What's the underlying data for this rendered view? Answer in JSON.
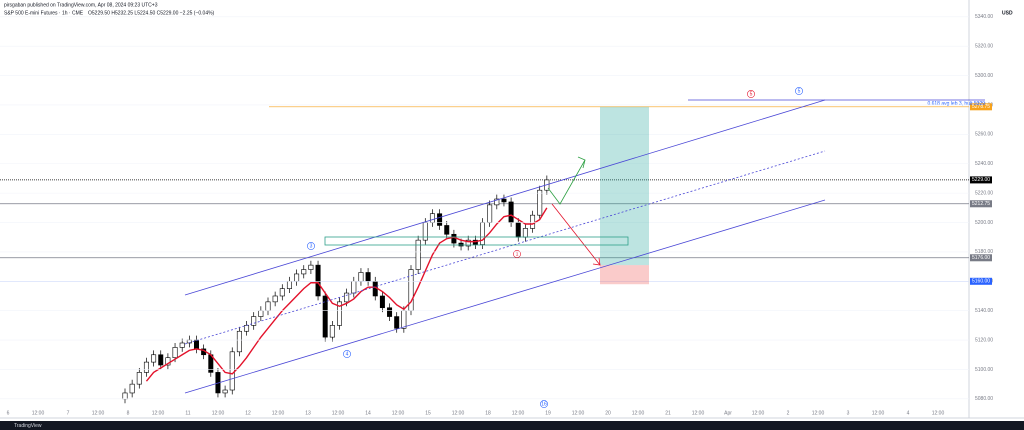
{
  "chart_data": {
    "type": "candlestick",
    "publisher": "pirsgaban published on TradingView.com, Apr 08, 2024 09:23 UTC+3",
    "title": "S&P 500 E-mini Futures · 1h · CME",
    "ohlc_text": "O5229.50 H5232.25 L5224.50 C5229.00 −2.25 (−0.04%)",
    "currency": "USD",
    "brand": "TradingView",
    "ylim": [
      5069,
      5346
    ],
    "yticks": [
      {
        "value": 5080,
        "label": "5080.00"
      },
      {
        "value": 5100,
        "label": "5100.00"
      },
      {
        "value": 5120,
        "label": "5120.00"
      },
      {
        "value": 5140,
        "label": "5140.00"
      },
      {
        "value": 5160,
        "label": "5160.00"
      },
      {
        "value": 5180,
        "label": "5180.00"
      },
      {
        "value": 5200,
        "label": "5200.00"
      },
      {
        "value": 5220,
        "label": "5220.00"
      },
      {
        "value": 5240,
        "label": "5240.00"
      },
      {
        "value": 5260,
        "label": "5260.00"
      },
      {
        "value": 5280,
        "label": "5280.00"
      },
      {
        "value": 5300,
        "label": "5300.00"
      },
      {
        "value": 5320,
        "label": "5320.00"
      },
      {
        "value": 5340,
        "label": "5340.00"
      }
    ],
    "xlabels": [
      "6",
      "12:00",
      "7",
      "12:00",
      "8",
      "12:00",
      "11",
      "12:00",
      "12",
      "12:00",
      "13",
      "12:00",
      "14",
      "12:00",
      "15",
      "12:00",
      "18",
      "12:00",
      "19",
      "12:00",
      "20",
      "12:00",
      "21",
      "12:00",
      "Apr",
      "12:00",
      "2",
      "12:00",
      "3",
      "12:00",
      "4",
      "12:00"
    ],
    "open": [
      5080,
      5084,
      5090,
      5098,
      5105,
      5110,
      5103,
      5108,
      5115,
      5118,
      5120,
      5114,
      5110,
      5098,
      5084,
      5086,
      5112,
      5126,
      5130,
      5136,
      5140,
      5146,
      5150,
      5155,
      5160,
      5165,
      5168,
      5171,
      5150,
      5122,
      5130,
      5146,
      5152,
      5160,
      5166,
      5160,
      5150,
      5142,
      5136,
      5128,
      5140,
      5168,
      5188,
      5200,
      5206,
      5198,
      5192,
      5186,
      5184,
      5188,
      5185,
      5200,
      5212,
      5216,
      5214,
      5200,
      5190,
      5196,
      5205,
      5222
    ],
    "high": [
      5087,
      5093,
      5101,
      5108,
      5113,
      5113,
      5111,
      5118,
      5121,
      5123,
      5123,
      5117,
      5113,
      5101,
      5089,
      5115,
      5129,
      5133,
      5139,
      5143,
      5149,
      5153,
      5158,
      5163,
      5168,
      5171,
      5174,
      5174,
      5153,
      5133,
      5149,
      5155,
      5163,
      5169,
      5169,
      5163,
      5153,
      5145,
      5139,
      5143,
      5171,
      5191,
      5203,
      5209,
      5209,
      5201,
      5195,
      5189,
      5191,
      5191,
      5203,
      5215,
      5219,
      5219,
      5217,
      5203,
      5199,
      5208,
      5225,
      5232
    ],
    "low": [
      5077,
      5081,
      5087,
      5095,
      5102,
      5100,
      5100,
      5105,
      5112,
      5115,
      5111,
      5107,
      5095,
      5081,
      5081,
      5083,
      5109,
      5123,
      5127,
      5133,
      5137,
      5143,
      5147,
      5152,
      5157,
      5162,
      5165,
      5147,
      5119,
      5119,
      5127,
      5143,
      5149,
      5157,
      5157,
      5147,
      5139,
      5133,
      5125,
      5125,
      5137,
      5165,
      5185,
      5197,
      5195,
      5189,
      5183,
      5181,
      5181,
      5182,
      5182,
      5197,
      5209,
      5211,
      5197,
      5187,
      5187,
      5193,
      5202,
      5219
    ],
    "close": [
      5084,
      5090,
      5098,
      5105,
      5110,
      5103,
      5108,
      5115,
      5118,
      5120,
      5114,
      5110,
      5098,
      5084,
      5086,
      5112,
      5126,
      5130,
      5136,
      5140,
      5146,
      5150,
      5155,
      5160,
      5165,
      5168,
      5171,
      5150,
      5122,
      5130,
      5146,
      5152,
      5160,
      5166,
      5160,
      5150,
      5142,
      5136,
      5128,
      5140,
      5168,
      5188,
      5200,
      5206,
      5198,
      5192,
      5186,
      5184,
      5188,
      5185,
      5200,
      5212,
      5216,
      5214,
      5200,
      5190,
      5196,
      5205,
      5222,
      5229
    ],
    "ma": {
      "color": "#e3122b",
      "values": [
        null,
        null,
        null,
        5092,
        5098,
        5101,
        5104,
        5107,
        5110,
        5113,
        5114,
        5113,
        5110,
        5104,
        5098,
        5097,
        5102,
        5108,
        5115,
        5122,
        5128,
        5134,
        5140,
        5145,
        5150,
        5155,
        5159,
        5159,
        5152,
        5145,
        5143,
        5145,
        5148,
        5153,
        5156,
        5156,
        5153,
        5149,
        5144,
        5141,
        5146,
        5156,
        5167,
        5178,
        5186,
        5189,
        5190,
        5188,
        5187,
        5187,
        5188,
        5193,
        5199,
        5204,
        5205,
        5202,
        5199,
        5199,
        5202,
        5210
      ]
    },
    "levels": [
      {
        "value": 5278.75,
        "label": "5278.75",
        "color": "#f7a21b"
      },
      {
        "value": 5229,
        "label": "5229.00",
        "color": "#000000"
      },
      {
        "value": 5212.75,
        "label": "5212.75",
        "color": "#787b86"
      },
      {
        "value": 5176,
        "label": "5176.00",
        "color": "#787b86"
      },
      {
        "value": 5160,
        "label": "5160.00",
        "color": "#2962ff"
      }
    ],
    "position": {
      "target": 5278.75,
      "entry": 5171,
      "stop": 5158
    },
    "level_note": "0.618 avg leb 3, hult 5329",
    "annotations": [
      "3",
      "4",
      "5",
      "5",
      "1",
      "16"
    ]
  }
}
